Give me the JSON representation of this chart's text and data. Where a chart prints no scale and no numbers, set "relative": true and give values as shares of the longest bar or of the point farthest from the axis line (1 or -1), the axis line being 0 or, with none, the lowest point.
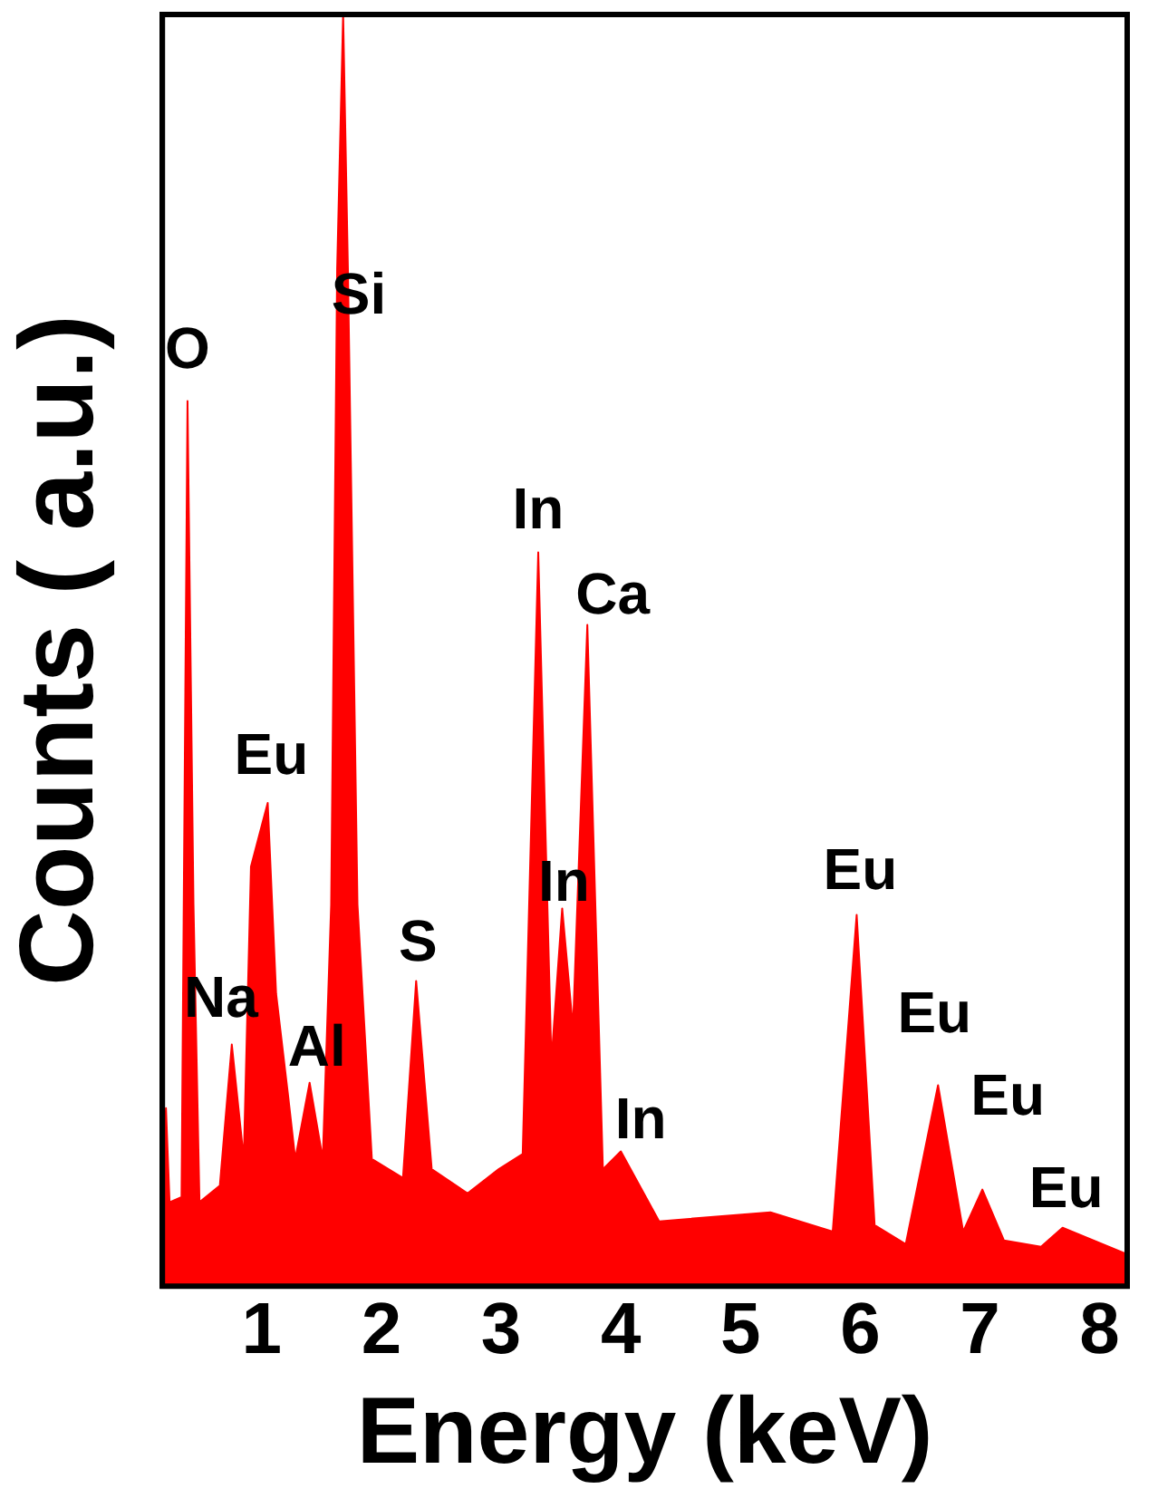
{
  "chart_data": {
    "type": "area",
    "relative": true,
    "xlabel": "Energy (keV)",
    "ylabel": "Counts ( a.u.)",
    "xlim": [
      0.17,
      8.23
    ],
    "xticks": [
      1,
      2,
      3,
      4,
      5,
      6,
      7,
      8
    ],
    "grid": false,
    "legend": false,
    "marker": "none",
    "x": [
      0.17,
      0.2,
      0.23,
      0.33,
      0.38,
      0.43,
      0.48,
      0.65,
      0.75,
      0.85,
      0.91,
      1.05,
      1.12,
      1.22,
      1.28,
      1.4,
      1.51,
      1.58,
      1.63,
      1.68,
      1.72,
      1.8,
      1.92,
      2.18,
      2.29,
      2.42,
      2.72,
      2.98,
      3.18,
      3.31,
      3.42,
      3.51,
      3.6,
      3.72,
      3.85,
      4.0,
      4.32,
      5.25,
      5.77,
      5.97,
      6.12,
      6.38,
      6.65,
      6.86,
      7.02,
      7.2,
      7.51,
      7.69,
      8.23
    ],
    "series": [
      {
        "color": "#ff0000",
        "values": [
          0.066,
          0.14,
          0.066,
          0.07,
          0.696,
          0.3,
          0.066,
          0.079,
          0.19,
          0.1,
          0.33,
          0.38,
          0.23,
          0.15,
          0.1,
          0.16,
          0.1,
          0.3,
          0.8,
          1,
          0.8,
          0.3,
          0.1,
          0.085,
          0.24,
          0.092,
          0.073,
          0.092,
          0.104,
          0.577,
          0.177,
          0.297,
          0.203,
          0.52,
          0.092,
          0.106,
          0.051,
          0.058,
          0.043,
          0.292,
          0.048,
          0.033,
          0.158,
          0.043,
          0.076,
          0.036,
          0.031,
          0.046,
          0.025
        ]
      }
    ],
    "annotations": [
      {
        "text": "O",
        "x": 0.38,
        "y": 0.696
      },
      {
        "text": "Si",
        "x": 1.72,
        "y": 0.8
      },
      {
        "text": "Eu",
        "x": 1.05,
        "y": 0.38
      },
      {
        "text": "Na",
        "x": 0.75,
        "y": 0.19
      },
      {
        "text": "Al",
        "x": 1.4,
        "y": 0.16
      },
      {
        "text": "S",
        "x": 2.29,
        "y": 0.24
      },
      {
        "text": "In",
        "x": 3.31,
        "y": 0.577
      },
      {
        "text": "Ca",
        "x": 3.72,
        "y": 0.52
      },
      {
        "text": "In",
        "x": 3.51,
        "y": 0.297
      },
      {
        "text": "In",
        "x": 4.0,
        "y": 0.106
      },
      {
        "text": "Eu",
        "x": 5.97,
        "y": 0.292
      },
      {
        "text": "Eu",
        "x": 6.65,
        "y": 0.158
      },
      {
        "text": "Eu",
        "x": 7.02,
        "y": 0.076
      },
      {
        "text": "Eu",
        "x": 7.69,
        "y": 0.046
      }
    ]
  }
}
